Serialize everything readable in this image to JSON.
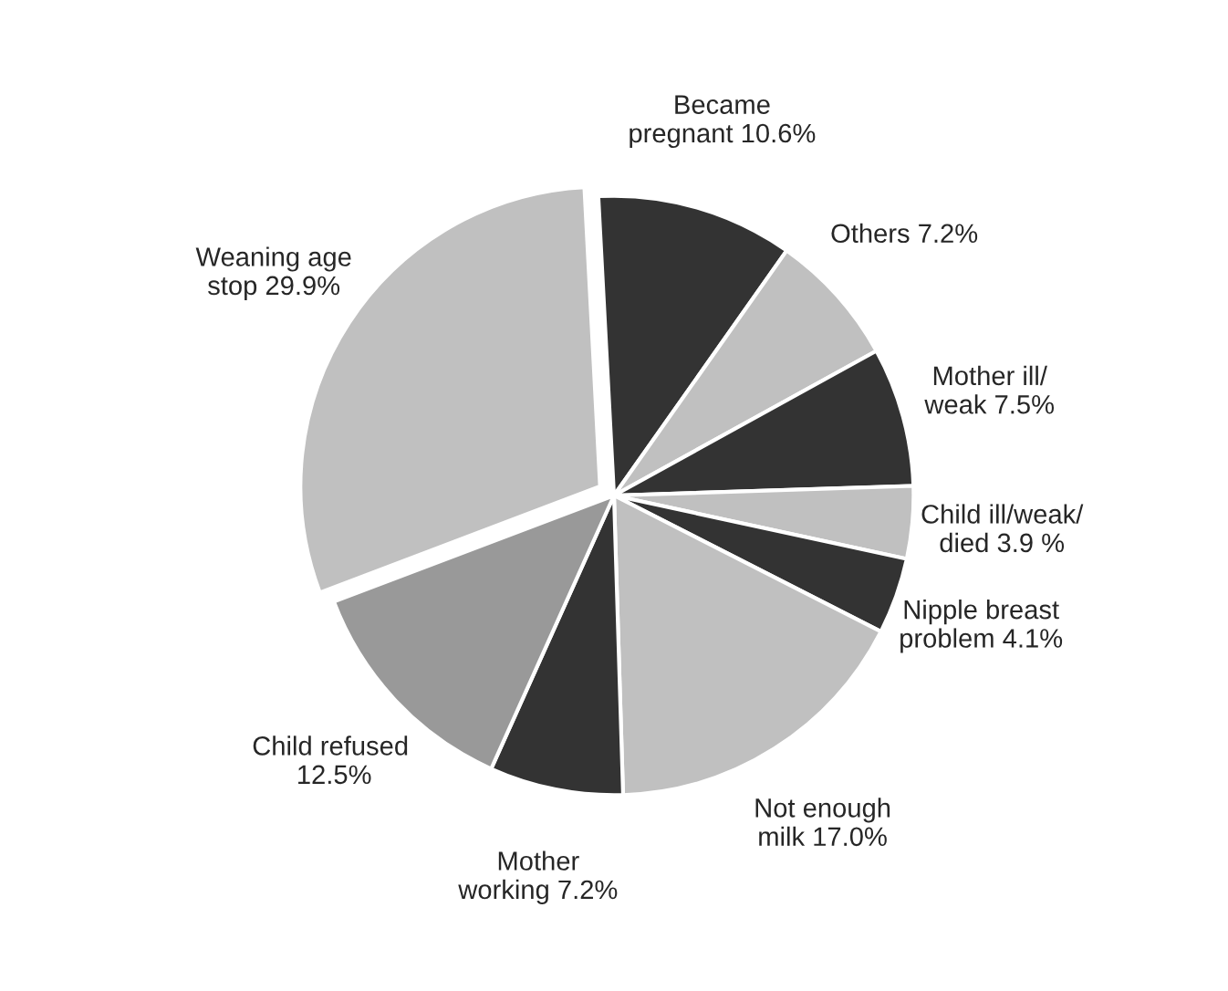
{
  "chart_data": {
    "type": "pie",
    "categories": [
      "Became\npregnant",
      "Others",
      "Mother ill/\nweak",
      "Child ill/weak/\ndied",
      "Nipple breast\nproblem",
      "Not enough\nmilk",
      "Mother\nworking",
      "Child refused\n",
      "Weaning age\nstop"
    ],
    "values": [
      10.6,
      7.2,
      7.5,
      3.9,
      4.1,
      17.0,
      7.2,
      12.5,
      29.9
    ],
    "value_labels": [
      "10.6%",
      "7.2%",
      "7.5%",
      "3.9 %",
      "4.1%",
      "17.0%",
      "7.2%",
      "12.5%",
      "29.9%"
    ],
    "colors": [
      "#333333",
      "#c0c0c0",
      "#333333",
      "#c0c0c0",
      "#333333",
      "#c0c0c0",
      "#333333",
      "#999999",
      "#c0c0c0"
    ],
    "legend": false
  }
}
